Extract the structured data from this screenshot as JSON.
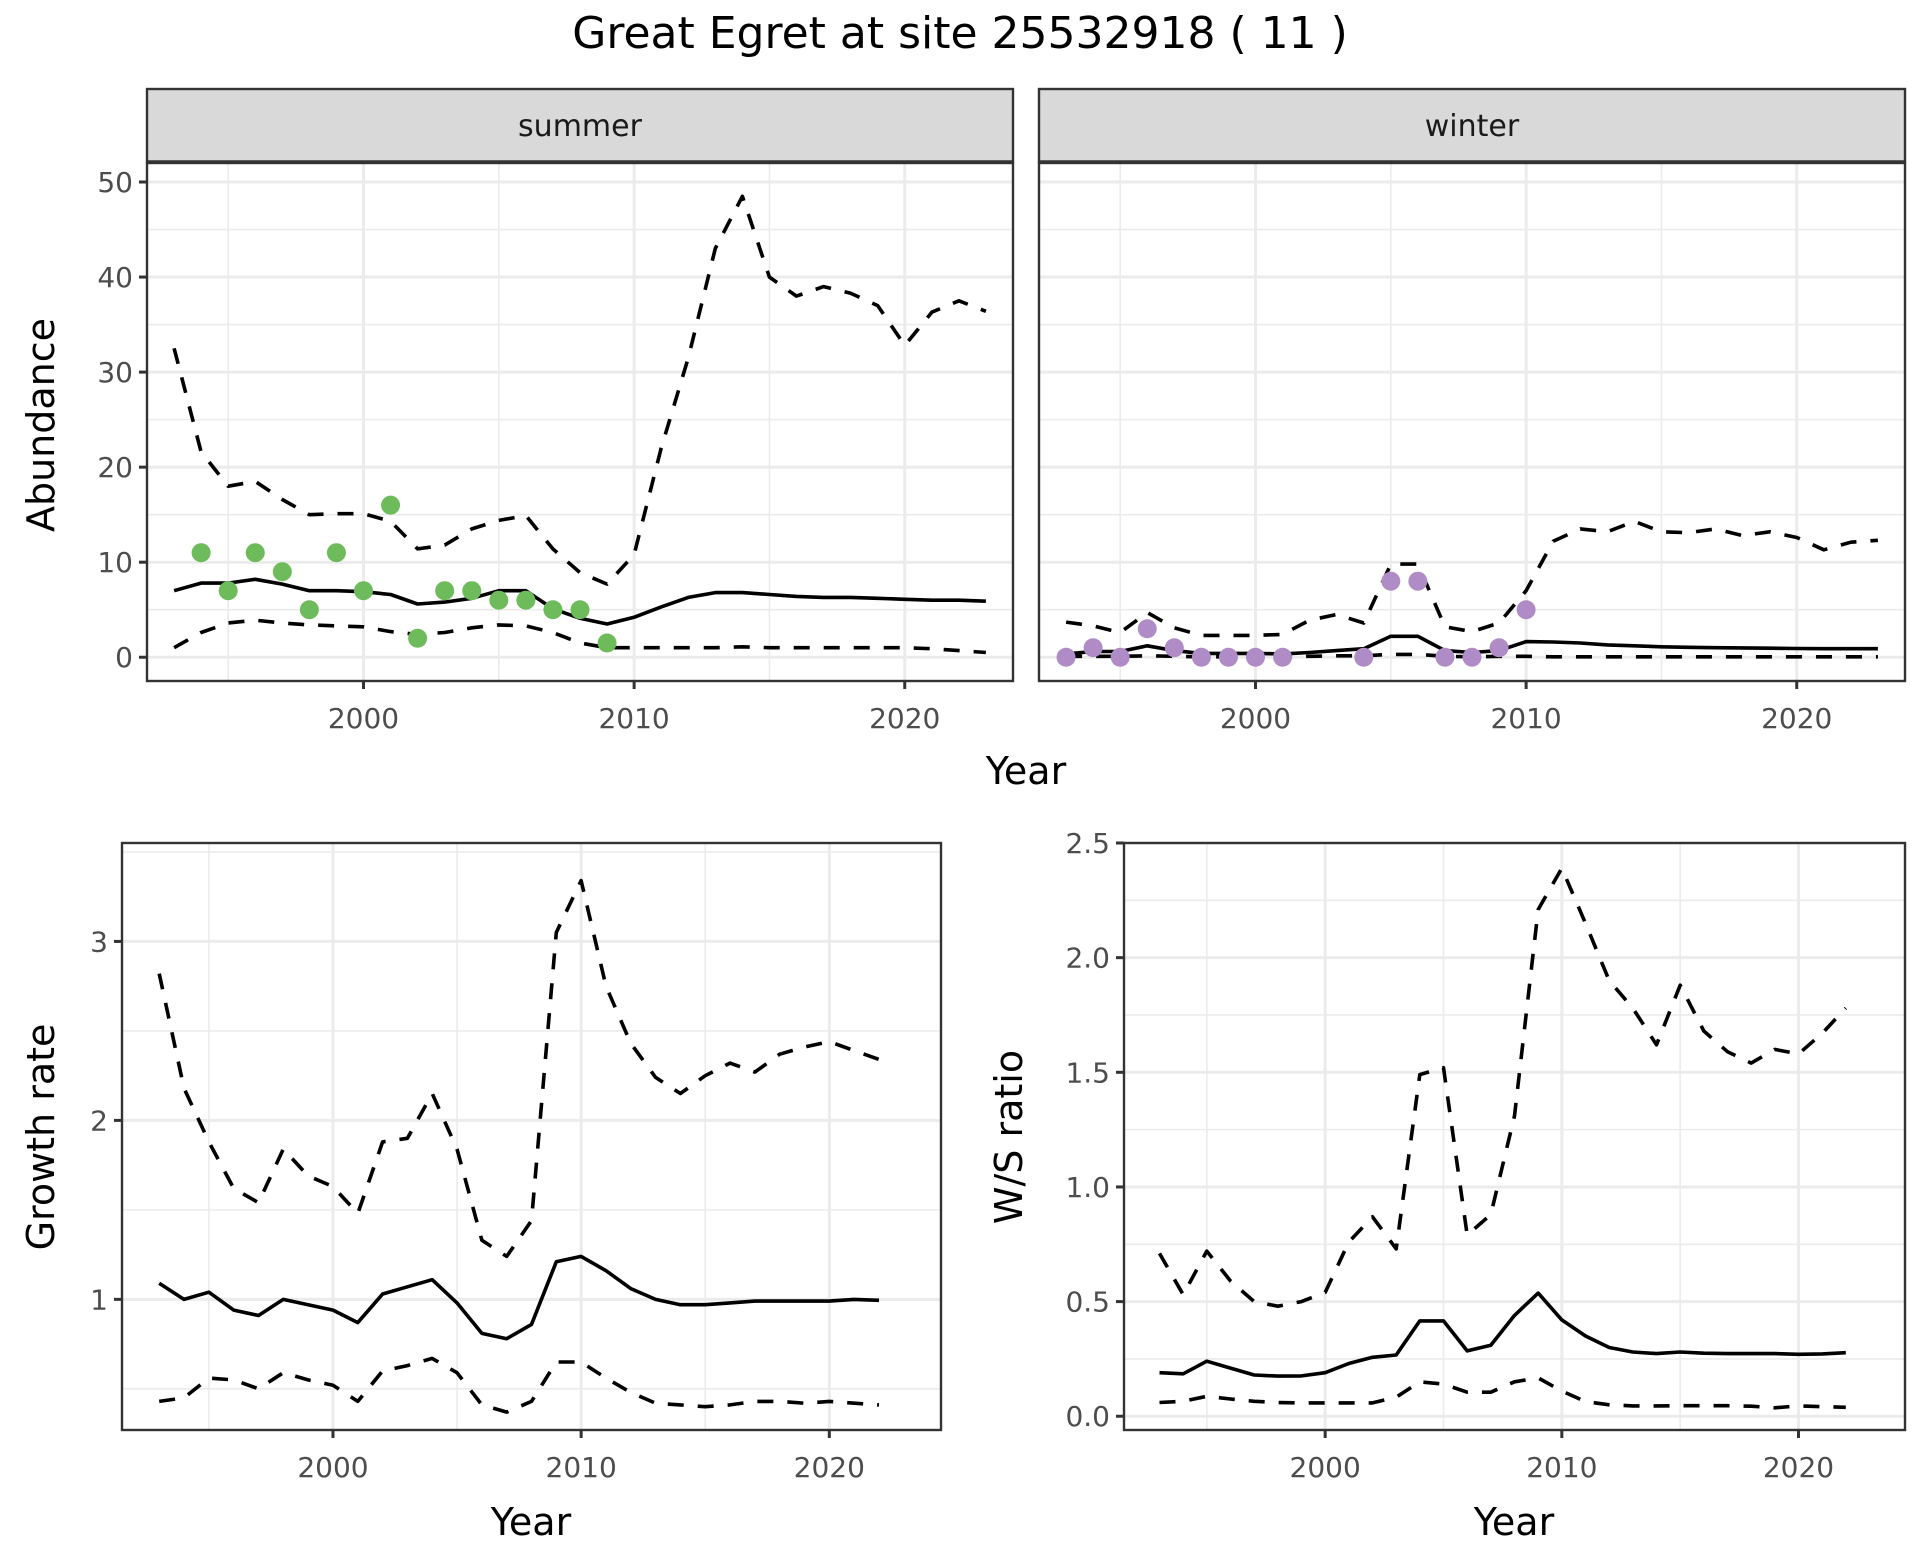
{
  "title": "Great Egret at site 25532918 ( 11 )",
  "chart_data": [
    {
      "id": "abundance-summer",
      "type": "line",
      "facet": "summer",
      "title": "summer",
      "xlabel": "Year",
      "ylabel": "Abundance",
      "xlim": [
        1992,
        2024
      ],
      "ylim": [
        -2.5,
        52
      ],
      "xticks": [
        2000,
        2010,
        2020
      ],
      "yticks": [
        0,
        10,
        20,
        30,
        40,
        50
      ],
      "grid": true,
      "point_color": "#6dbb5b",
      "x": [
        1993,
        1994,
        1995,
        1996,
        1997,
        1998,
        1999,
        2000,
        2001,
        2002,
        2003,
        2004,
        2005,
        2006,
        2007,
        2008,
        2009,
        2010,
        2011,
        2012,
        2013,
        2014,
        2015,
        2016,
        2017,
        2018,
        2019,
        2020,
        2021,
        2022,
        2023
      ],
      "series": [
        {
          "name": "upper",
          "style": "dashed",
          "values": [
            32.5,
            21.6,
            18.0,
            18.5,
            16.6,
            15.0,
            15.1,
            15.1,
            14.3,
            11.4,
            11.8,
            13.5,
            14.4,
            14.9,
            11.4,
            8.9,
            7.7,
            10.8,
            22.0,
            31.5,
            43.0,
            48.5,
            40.0,
            38.0,
            39.0,
            38.3,
            37.0,
            32.8,
            36.3,
            37.5,
            36.4
          ]
        },
        {
          "name": "mean",
          "style": "solid",
          "values": [
            7.0,
            7.8,
            7.8,
            8.2,
            7.7,
            7.0,
            7.0,
            6.9,
            6.6,
            5.6,
            5.8,
            6.2,
            7.0,
            7.0,
            5.1,
            4.1,
            3.5,
            4.2,
            5.3,
            6.3,
            6.8,
            6.8,
            6.6,
            6.4,
            6.3,
            6.3,
            6.2,
            6.1,
            6.0,
            6.0,
            5.9
          ]
        },
        {
          "name": "lower",
          "style": "dashed",
          "values": [
            1.0,
            2.6,
            3.6,
            3.9,
            3.6,
            3.4,
            3.3,
            3.2,
            2.7,
            2.4,
            2.6,
            3.1,
            3.4,
            3.3,
            2.6,
            1.5,
            1.0,
            1.0,
            1.0,
            1.0,
            1.0,
            1.1,
            1.0,
            1.0,
            1.0,
            1.0,
            1.0,
            1.0,
            0.9,
            0.7,
            0.5
          ]
        }
      ],
      "points": {
        "x": [
          1994,
          1995,
          1996,
          1997,
          1998,
          1999,
          2000,
          2001,
          2002,
          2003,
          2004,
          2005,
          2006,
          2007,
          2008,
          2009
        ],
        "y": [
          11,
          7,
          11,
          9,
          5,
          11,
          7,
          16,
          2,
          7,
          7,
          6,
          6,
          5,
          5,
          1.5
        ]
      }
    },
    {
      "id": "abundance-winter",
      "type": "line",
      "facet": "winter",
      "title": "winter",
      "xlabel": "Year",
      "ylabel": "Abundance",
      "xlim": [
        1992,
        2024
      ],
      "ylim": [
        -2.5,
        52
      ],
      "xticks": [
        2000,
        2010,
        2020
      ],
      "yticks": [
        0,
        10,
        20,
        30,
        40,
        50
      ],
      "grid": true,
      "point_color": "#b08cc7",
      "x": [
        1993,
        1994,
        1995,
        1996,
        1997,
        1998,
        1999,
        2000,
        2001,
        2002,
        2003,
        2004,
        2005,
        2006,
        2007,
        2008,
        2009,
        2010,
        2011,
        2012,
        2013,
        2014,
        2015,
        2016,
        2017,
        2018,
        2019,
        2020,
        2021,
        2022,
        2023
      ],
      "series": [
        {
          "name": "upper",
          "style": "dashed",
          "values": [
            3.7,
            3.3,
            2.6,
            4.7,
            3.1,
            2.3,
            2.3,
            2.3,
            2.4,
            3.9,
            4.5,
            3.6,
            9.8,
            9.8,
            3.2,
            2.7,
            3.6,
            7.0,
            12.2,
            13.5,
            13.2,
            14.3,
            13.2,
            13.1,
            13.5,
            12.8,
            13.2,
            12.6,
            11.3,
            12.1,
            12.3
          ]
        },
        {
          "name": "mean",
          "style": "solid",
          "values": [
            0.35,
            0.6,
            0.6,
            1.2,
            0.7,
            0.4,
            0.4,
            0.4,
            0.35,
            0.5,
            0.7,
            0.9,
            2.2,
            2.2,
            0.7,
            0.5,
            0.7,
            1.65,
            1.6,
            1.5,
            1.3,
            1.2,
            1.1,
            1.05,
            1.0,
            0.98,
            0.95,
            0.92,
            0.9,
            0.9,
            0.9
          ]
        },
        {
          "name": "lower",
          "style": "dashed",
          "values": [
            0.1,
            0.1,
            0.1,
            0.15,
            0.1,
            0.05,
            0.05,
            0.05,
            0.05,
            0.1,
            0.15,
            0.15,
            0.3,
            0.3,
            0.1,
            0.05,
            0.1,
            0.1,
            0.05,
            0.05,
            0.05,
            0.05,
            0.05,
            0.05,
            0.05,
            0.05,
            0.05,
            0.05,
            0.05,
            0.05,
            0.05
          ]
        }
      ],
      "points": {
        "x": [
          1993,
          1994,
          1995,
          1996,
          1997,
          1998,
          1999,
          2000,
          2001,
          2004,
          2005,
          2006,
          2007,
          2008,
          2009,
          2010
        ],
        "y": [
          0,
          1,
          0,
          3,
          1,
          0,
          0,
          0,
          0,
          0,
          8,
          8,
          0,
          0,
          1,
          5
        ]
      }
    },
    {
      "id": "growth-rate",
      "type": "line",
      "title": "",
      "xlabel": "Year",
      "ylabel": "Growth rate",
      "xlim": [
        1991.5,
        2024.5
      ],
      "ylim": [
        0.27,
        3.55
      ],
      "xticks": [
        2000,
        2010,
        2020
      ],
      "yticks": [
        1,
        2,
        3
      ],
      "grid": true,
      "x": [
        1993,
        1994,
        1995,
        1996,
        1997,
        1998,
        1999,
        2000,
        2001,
        2002,
        2003,
        2004,
        2005,
        2006,
        2007,
        2008,
        2009,
        2010,
        2011,
        2012,
        2013,
        2014,
        2015,
        2016,
        2017,
        2018,
        2019,
        2020,
        2021,
        2022
      ],
      "series": [
        {
          "name": "upper",
          "style": "dashed",
          "values": [
            2.82,
            2.18,
            1.88,
            1.62,
            1.54,
            1.84,
            1.69,
            1.63,
            1.48,
            1.88,
            1.9,
            2.15,
            1.84,
            1.33,
            1.24,
            1.44,
            3.05,
            3.34,
            2.75,
            2.43,
            2.24,
            2.15,
            2.25,
            2.32,
            2.27,
            2.37,
            2.41,
            2.44,
            2.39,
            2.34
          ]
        },
        {
          "name": "mean",
          "style": "solid",
          "values": [
            1.09,
            1.0,
            1.04,
            0.94,
            0.91,
            1.0,
            0.97,
            0.94,
            0.87,
            1.03,
            1.07,
            1.11,
            0.98,
            0.81,
            0.78,
            0.86,
            1.21,
            1.24,
            1.16,
            1.06,
            1.0,
            0.97,
            0.97,
            0.98,
            0.99,
            0.99,
            0.99,
            0.99,
            1.0,
            0.995
          ]
        },
        {
          "name": "lower",
          "style": "dashed",
          "values": [
            0.43,
            0.45,
            0.56,
            0.55,
            0.5,
            0.59,
            0.55,
            0.52,
            0.43,
            0.6,
            0.63,
            0.67,
            0.59,
            0.41,
            0.37,
            0.43,
            0.65,
            0.65,
            0.56,
            0.48,
            0.42,
            0.41,
            0.4,
            0.41,
            0.43,
            0.43,
            0.42,
            0.43,
            0.42,
            0.41
          ]
        }
      ]
    },
    {
      "id": "ws-ratio",
      "type": "line",
      "title": "",
      "xlabel": "Year",
      "ylabel": "W/S ratio",
      "xlim": [
        1991.5,
        2024.5
      ],
      "ylim": [
        -0.06,
        2.5
      ],
      "xticks": [
        2000,
        2010,
        2020
      ],
      "yticks": [
        0.0,
        0.5,
        1.0,
        1.5,
        2.0,
        2.5
      ],
      "ytick_labels": [
        "0.0",
        "0.5",
        "1.0",
        "1.5",
        "2.0",
        "2.5"
      ],
      "grid": true,
      "x": [
        1993,
        1994,
        1995,
        1996,
        1997,
        1998,
        1999,
        2000,
        2001,
        2002,
        2003,
        2004,
        2005,
        2006,
        2007,
        2008,
        2009,
        2010,
        2011,
        2012,
        2013,
        2014,
        2015,
        2016,
        2017,
        2018,
        2019,
        2020,
        2021,
        2022
      ],
      "series": [
        {
          "name": "upper",
          "style": "dashed",
          "values": [
            0.71,
            0.53,
            0.72,
            0.59,
            0.5,
            0.48,
            0.5,
            0.54,
            0.76,
            0.87,
            0.73,
            1.49,
            1.52,
            0.79,
            0.88,
            1.31,
            2.21,
            2.39,
            2.15,
            1.9,
            1.78,
            1.62,
            1.88,
            1.68,
            1.59,
            1.54,
            1.6,
            1.58,
            1.67,
            1.78
          ]
        },
        {
          "name": "mean",
          "style": "solid",
          "values": [
            0.19,
            0.185,
            0.24,
            0.21,
            0.18,
            0.175,
            0.176,
            0.19,
            0.23,
            0.257,
            0.267,
            0.416,
            0.416,
            0.285,
            0.31,
            0.44,
            0.537,
            0.42,
            0.35,
            0.3,
            0.28,
            0.273,
            0.28,
            0.275,
            0.273,
            0.273,
            0.273,
            0.27,
            0.272,
            0.277
          ]
        },
        {
          "name": "lower",
          "style": "dashed",
          "values": [
            0.06,
            0.065,
            0.087,
            0.075,
            0.065,
            0.06,
            0.058,
            0.058,
            0.058,
            0.058,
            0.083,
            0.15,
            0.14,
            0.105,
            0.105,
            0.15,
            0.167,
            0.11,
            0.064,
            0.05,
            0.045,
            0.045,
            0.046,
            0.046,
            0.046,
            0.044,
            0.037,
            0.045,
            0.042,
            0.039
          ]
        }
      ]
    }
  ],
  "labels": {
    "abundance_ylabel": "Abundance",
    "top_xlabel": "Year",
    "growth_ylabel": "Growth rate",
    "growth_xlabel": "Year",
    "ws_ylabel": "W/S ratio",
    "ws_xlabel": "Year",
    "strip_summer": "summer",
    "strip_winter": "winter"
  }
}
